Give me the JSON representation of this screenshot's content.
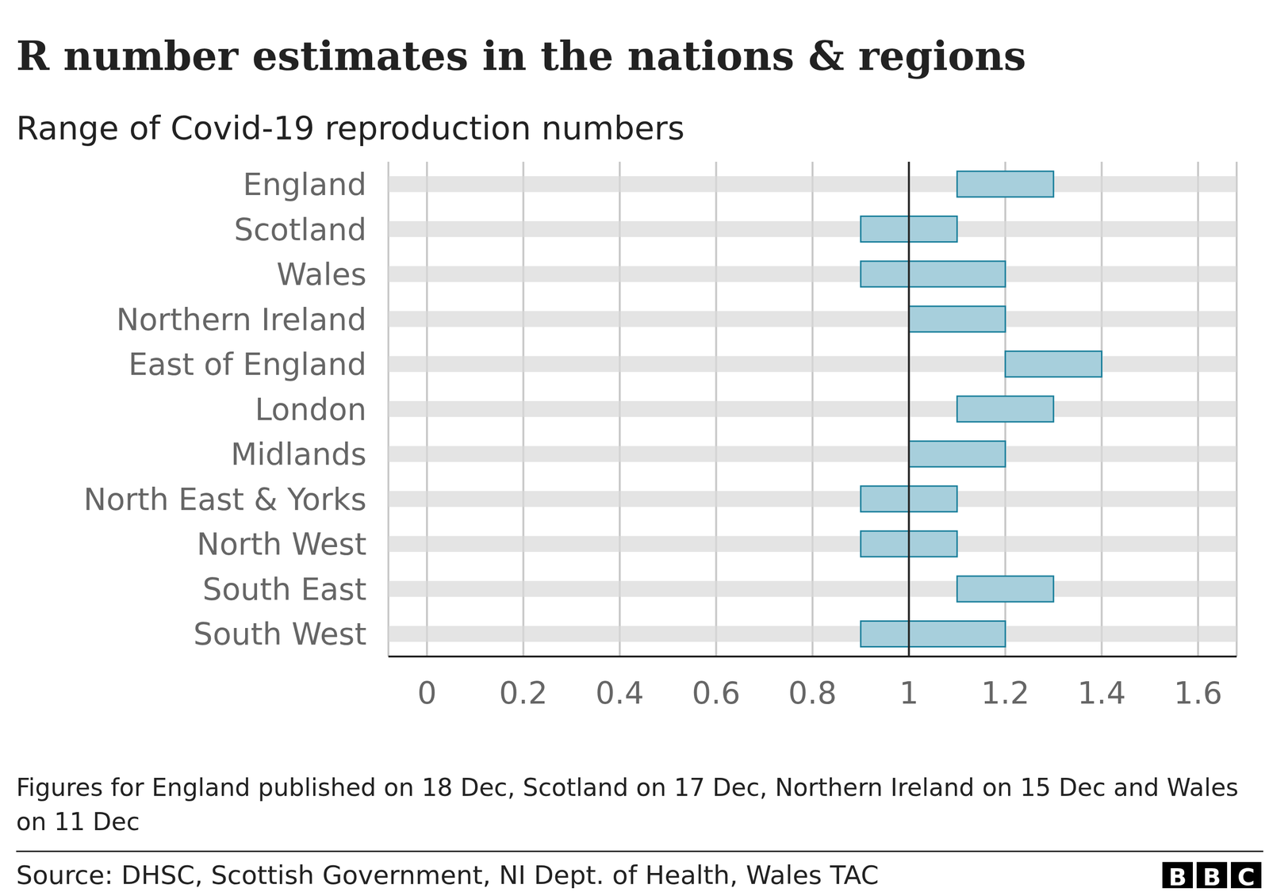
{
  "chart_data": {
    "type": "bar",
    "orientation": "horizontal",
    "title": "R number estimates in the nations & regions",
    "subtitle": "Range of Covid-19 reproduction numbers",
    "categories": [
      "England",
      "Scotland",
      "Wales",
      "Northern Ireland",
      "East of England",
      "London",
      "Midlands",
      "North East & Yorks",
      "North West",
      "South East",
      "South West"
    ],
    "values": [
      [
        1.1,
        1.3
      ],
      [
        0.9,
        1.1
      ],
      [
        0.9,
        1.2
      ],
      [
        1.0,
        1.2
      ],
      [
        1.2,
        1.4
      ],
      [
        1.1,
        1.3
      ],
      [
        1.0,
        1.2
      ],
      [
        0.9,
        1.1
      ],
      [
        0.9,
        1.1
      ],
      [
        1.1,
        1.3
      ],
      [
        0.9,
        1.2
      ]
    ],
    "color": "#a7cfdc",
    "xlim": [
      -0.08,
      1.68
    ],
    "xticks": [
      0,
      0.2,
      0.4,
      0.6,
      0.8,
      1,
      1.2,
      1.4,
      1.6
    ],
    "reference_line": 1,
    "grid": true,
    "footnote": "Figures for England published on 18 Dec, Scotland on 17 Dec, Northern Ireland on 15 Dec and Wales on 11 Dec",
    "source": "Source: DHSC, Scottish Government, NI Dept. of Health, Wales TAC",
    "logo": "BBC"
  }
}
